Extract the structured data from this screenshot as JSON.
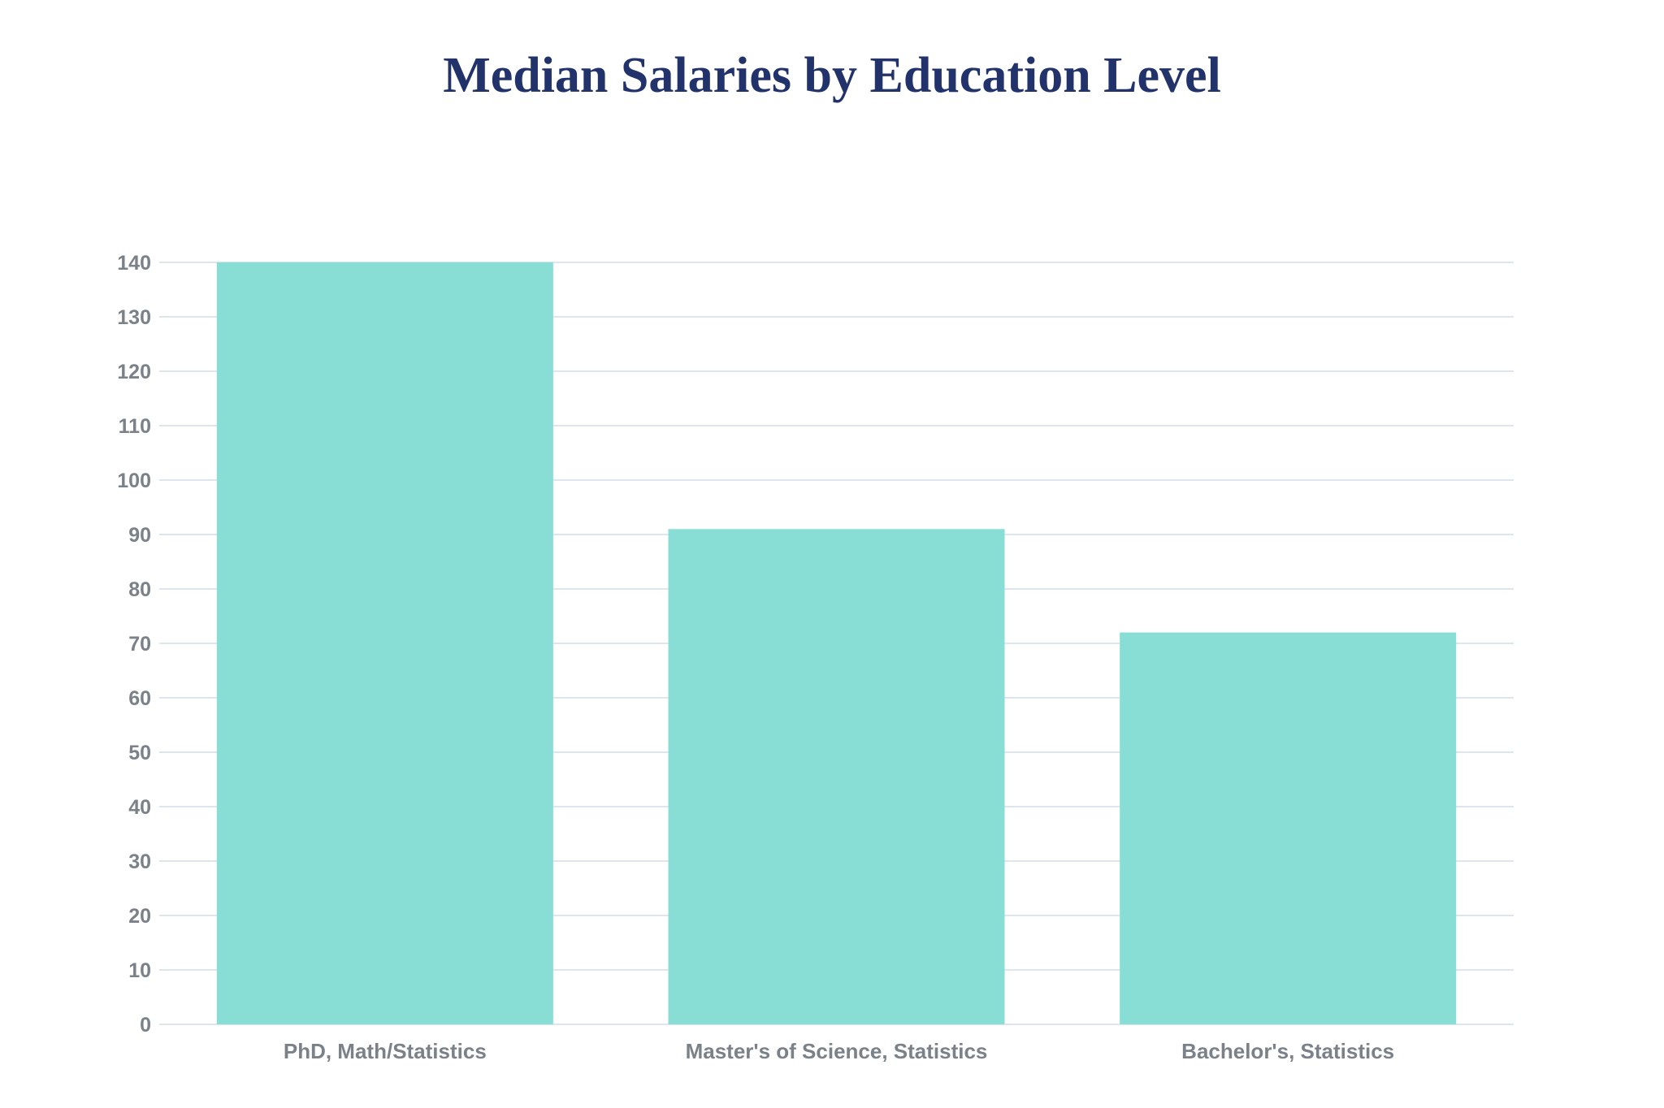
{
  "chart_data": {
    "type": "bar",
    "title": "Median Salaries by Education Level",
    "xlabel": "",
    "ylabel": "",
    "categories": [
      "PhD, Math/Statistics",
      "Master's of Science, Statistics",
      "Bachelor's, Statistics"
    ],
    "values": [
      140,
      91,
      72
    ],
    "ylim": [
      0,
      140
    ],
    "yticks": [
      "0",
      "10",
      "20",
      "30",
      "40",
      "50",
      "60",
      "70",
      "80",
      "90",
      "100",
      "110",
      "120",
      "130",
      "140"
    ],
    "grid": true,
    "legend": "none",
    "colors": {
      "bar": "#88ddd5",
      "grid": "#dde6ee",
      "title": "#22336b",
      "text": "#7b8189"
    }
  }
}
